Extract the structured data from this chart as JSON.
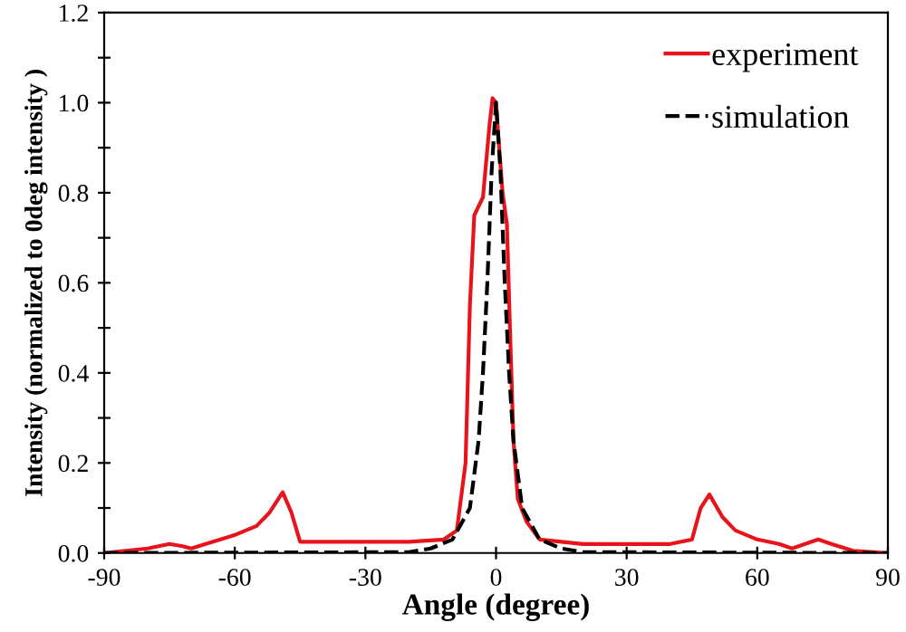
{
  "chart_data": {
    "type": "line",
    "xlabel": "Angle (degree)",
    "ylabel": "Intensity (normalized to 0deg intensity )",
    "xlim": [
      -90,
      90
    ],
    "xticks": [
      -90,
      -60,
      -30,
      0,
      30,
      60,
      90
    ],
    "ylim": [
      0,
      1.2
    ],
    "yticks": [
      {
        "value": 0,
        "label": "0.0"
      },
      {
        "value": 0.1,
        "label": null
      },
      0.2,
      {
        "value": 0.3,
        "label": null
      },
      0.4,
      {
        "value": 0.5,
        "label": null
      },
      0.6,
      {
        "value": 0.7,
        "label": null
      },
      0.8,
      {
        "value": 0.9,
        "label": null
      },
      {
        "value": 1,
        "label": "1.0"
      },
      {
        "value": 1.1,
        "label": null
      },
      1.2
    ],
    "grid": false,
    "legend": "top right",
    "series": [
      {
        "name": "experiment",
        "color": "#e8141c",
        "line_style": "solid",
        "x": [
          -90,
          -85,
          -80,
          -75,
          -72,
          -70,
          -65,
          -60,
          -55,
          -52,
          -49,
          -47,
          -45,
          -40,
          -30,
          -20,
          -12,
          -9,
          -7,
          -6,
          -5,
          -3,
          -1.5,
          -0.8,
          0,
          0.5,
          1.5,
          2.5,
          3.2,
          4,
          5,
          7,
          10,
          15,
          20,
          30,
          40,
          45,
          47,
          49,
          52,
          55,
          60,
          65,
          68,
          71,
          74,
          77,
          82,
          90
        ],
        "values": [
          0,
          0.005,
          0.01,
          0.02,
          0.015,
          0.01,
          0.025,
          0.04,
          0.06,
          0.09,
          0.135,
          0.09,
          0.025,
          0.025,
          0.025,
          0.025,
          0.03,
          0.05,
          0.2,
          0.55,
          0.75,
          0.79,
          0.95,
          1.01,
          1.0,
          0.93,
          0.8,
          0.73,
          0.5,
          0.25,
          0.12,
          0.07,
          0.03,
          0.025,
          0.02,
          0.02,
          0.02,
          0.03,
          0.1,
          0.13,
          0.08,
          0.05,
          0.03,
          0.02,
          0.01,
          0.02,
          0.03,
          0.02,
          0.005,
          0
        ]
      },
      {
        "name": "simulation",
        "color": "#000000",
        "line_style": "dashed",
        "x": [
          -90,
          -20,
          -15,
          -10,
          -6,
          -4,
          -3,
          -2,
          -1,
          0,
          1,
          2,
          3,
          4,
          6,
          10,
          15,
          20,
          90
        ],
        "values": [
          0,
          0.002,
          0.01,
          0.03,
          0.1,
          0.25,
          0.4,
          0.6,
          0.85,
          1.0,
          0.85,
          0.6,
          0.4,
          0.25,
          0.1,
          0.03,
          0.01,
          0.002,
          0
        ]
      }
    ]
  }
}
